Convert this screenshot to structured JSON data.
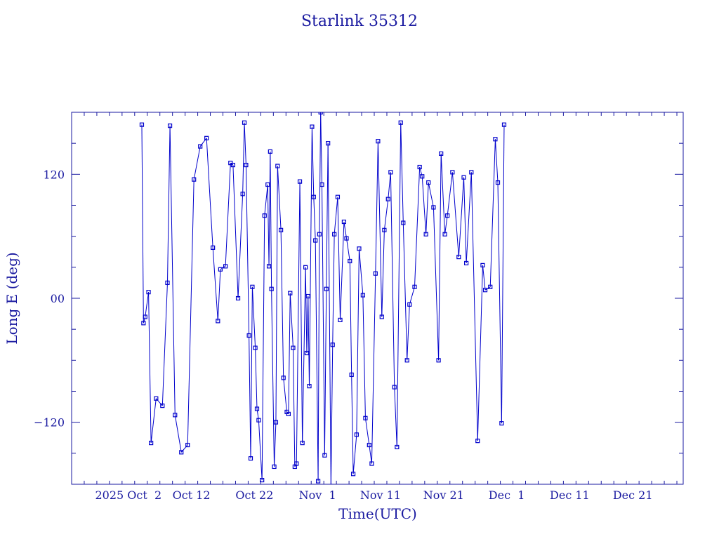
{
  "chart_data": {
    "type": "line",
    "title": "Starlink 35312",
    "xlabel": "Time(UTC)",
    "ylabel": "Long E (deg)",
    "x_axis": {
      "start_date": "2025-09-23",
      "end_date": "2025-12-29",
      "tick_labels": [
        {
          "date": "2025-10-02",
          "label": "2025 Oct  2"
        },
        {
          "date": "2025-10-12",
          "label": "Oct 12"
        },
        {
          "date": "2025-10-22",
          "label": "Oct 22"
        },
        {
          "date": "2025-11-01",
          "label": "Nov  1"
        },
        {
          "date": "2025-11-11",
          "label": "Nov 11"
        },
        {
          "date": "2025-11-21",
          "label": "Nov 21"
        },
        {
          "date": "2025-12-01",
          "label": "Dec  1"
        },
        {
          "date": "2025-12-11",
          "label": "Dec 11"
        },
        {
          "date": "2025-12-21",
          "label": "Dec 21"
        }
      ]
    },
    "ylim": [
      -180,
      180
    ],
    "y_ticks": [
      -120,
      0,
      120
    ],
    "y_tick_labels": [
      "−120",
      "00",
      "120"
    ],
    "grid": false,
    "series": [
      {
        "name": "",
        "color": "#0000cc",
        "marker": "square",
        "points": [
          [
            "2025-10-04",
            168
          ],
          [
            "2025-10-04",
            -24
          ],
          [
            "2025-10-04",
            -18
          ],
          [
            "2025-10-05",
            6
          ],
          [
            "2025-10-05",
            -140
          ],
          [
            "2025-10-06",
            -97
          ],
          [
            "2025-10-07",
            -104
          ],
          [
            "2025-10-08",
            15
          ],
          [
            "2025-10-08",
            167
          ],
          [
            "2025-10-09",
            -113
          ],
          [
            "2025-10-10",
            -149
          ],
          [
            "2025-10-11",
            -142
          ],
          [
            "2025-10-12",
            115
          ],
          [
            "2025-10-13",
            147
          ],
          [
            "2025-10-14",
            155
          ],
          [
            "2025-10-15",
            49
          ],
          [
            "2025-10-16",
            -22
          ],
          [
            "2025-10-16",
            28
          ],
          [
            "2025-10-17",
            31
          ],
          [
            "2025-10-18",
            131
          ],
          [
            "2025-10-18",
            129
          ],
          [
            "2025-10-19",
            0
          ],
          [
            "2025-10-20",
            101
          ],
          [
            "2025-10-20",
            170
          ],
          [
            "2025-10-20",
            129
          ],
          [
            "2025-10-21",
            -36
          ],
          [
            "2025-10-21",
            -155
          ],
          [
            "2025-10-21",
            11
          ],
          [
            "2025-10-22",
            -48
          ],
          [
            "2025-10-22",
            -107
          ],
          [
            "2025-10-22",
            -118
          ],
          [
            "2025-10-23",
            -176
          ],
          [
            "2025-10-23",
            80
          ],
          [
            "2025-10-24",
            110
          ],
          [
            "2025-10-24",
            31
          ],
          [
            "2025-10-24",
            142
          ],
          [
            "2025-10-24",
            9
          ],
          [
            "2025-10-25",
            -163
          ],
          [
            "2025-10-25",
            -120
          ],
          [
            "2025-10-25",
            128
          ],
          [
            "2025-10-26",
            66
          ],
          [
            "2025-10-26",
            -77
          ],
          [
            "2025-10-27",
            -110
          ],
          [
            "2025-10-27",
            -112
          ],
          [
            "2025-10-27",
            5
          ],
          [
            "2025-10-28",
            -48
          ],
          [
            "2025-10-28",
            -163
          ],
          [
            "2025-10-28",
            -160
          ],
          [
            "2025-10-29",
            113
          ],
          [
            "2025-10-29",
            -140
          ],
          [
            "2025-10-30",
            30
          ],
          [
            "2025-10-30",
            -53
          ],
          [
            "2025-10-30",
            2
          ],
          [
            "2025-10-30",
            -85
          ],
          [
            "2025-10-31",
            166
          ],
          [
            "2025-10-31",
            98
          ],
          [
            "2025-10-31",
            56
          ],
          [
            "2025-11-01",
            -177
          ],
          [
            "2025-11-01",
            62
          ],
          [
            "2025-11-01",
            180
          ],
          [
            "2025-11-01",
            110
          ],
          [
            "2025-11-02",
            -152
          ],
          [
            "2025-11-02",
            9
          ],
          [
            "2025-11-02",
            150
          ],
          [
            "2025-11-03",
            -182
          ],
          [
            "2025-11-03",
            -45
          ],
          [
            "2025-11-03",
            62
          ],
          [
            "2025-11-04",
            98
          ],
          [
            "2025-11-04",
            -21
          ],
          [
            "2025-11-05",
            74
          ],
          [
            "2025-11-05",
            58
          ],
          [
            "2025-11-06",
            36
          ],
          [
            "2025-11-06",
            -74
          ],
          [
            "2025-11-06",
            -170
          ],
          [
            "2025-11-07",
            -132
          ],
          [
            "2025-11-07",
            48
          ],
          [
            "2025-11-08",
            3
          ],
          [
            "2025-11-08",
            -116
          ],
          [
            "2025-11-09",
            -142
          ],
          [
            "2025-11-09",
            -160
          ],
          [
            "2025-11-10",
            24
          ],
          [
            "2025-11-10",
            152
          ],
          [
            "2025-11-11",
            -18
          ],
          [
            "2025-11-11",
            66
          ],
          [
            "2025-11-12",
            96
          ],
          [
            "2025-11-12",
            122
          ],
          [
            "2025-11-13",
            -86
          ],
          [
            "2025-11-13",
            -144
          ],
          [
            "2025-11-14",
            170
          ],
          [
            "2025-11-14",
            73
          ],
          [
            "2025-11-15",
            -60
          ],
          [
            "2025-11-15",
            -6
          ],
          [
            "2025-11-16",
            11
          ],
          [
            "2025-11-17",
            127
          ],
          [
            "2025-11-17",
            118
          ],
          [
            "2025-11-18",
            62
          ],
          [
            "2025-11-18",
            112
          ],
          [
            "2025-11-19",
            88
          ],
          [
            "2025-11-20",
            -60
          ],
          [
            "2025-11-20",
            140
          ],
          [
            "2025-11-21",
            62
          ],
          [
            "2025-11-21",
            80
          ],
          [
            "2025-11-22",
            122
          ],
          [
            "2025-11-23",
            40
          ],
          [
            "2025-11-24",
            117
          ],
          [
            "2025-11-24",
            34
          ],
          [
            "2025-11-25",
            122
          ],
          [
            "2025-11-26",
            -138
          ],
          [
            "2025-11-27",
            32
          ],
          [
            "2025-11-27",
            8
          ],
          [
            "2025-11-28",
            11
          ],
          [
            "2025-11-29",
            154
          ],
          [
            "2025-11-29",
            112
          ],
          [
            "2025-11-30",
            -121
          ],
          [
            "2025-11-30",
            168
          ]
        ]
      }
    ]
  }
}
